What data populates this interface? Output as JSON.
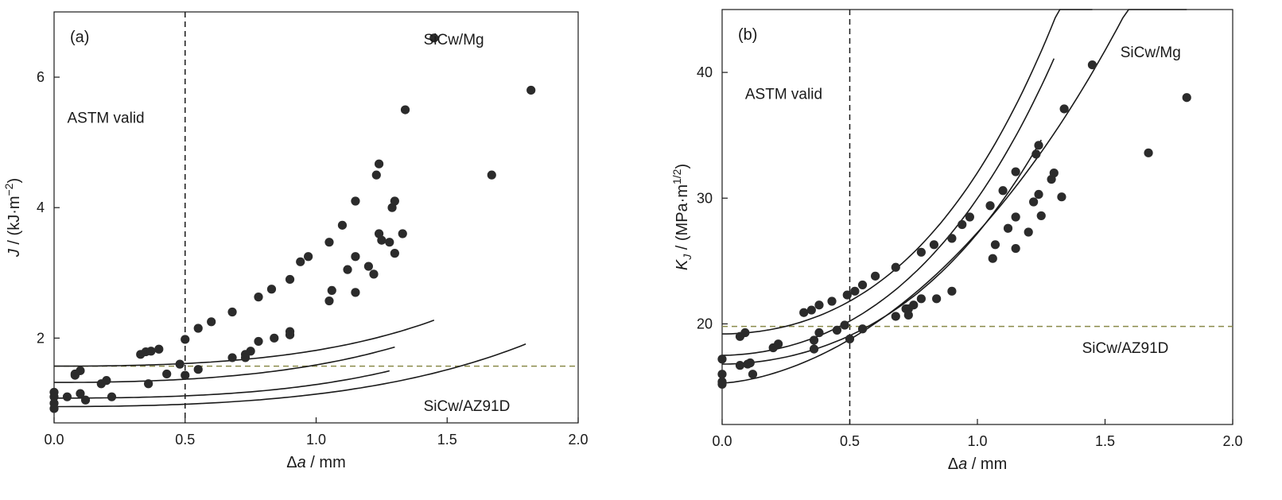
{
  "chart_data": [
    {
      "type": "scatter",
      "panel": "(a)",
      "xlabel": "Δa / mm",
      "xlabel_parts": [
        "Δ",
        "a",
        " / mm"
      ],
      "ylabel": "J / (kJ·m−2)",
      "ylabel_parts": [
        "J",
        " / (kJ·m",
        "−2",
        ")"
      ],
      "xlim": [
        0,
        2.0
      ],
      "ylim": [
        0.7,
        7.0
      ],
      "xticks": [
        0,
        0.5,
        1.0,
        1.5,
        2.0
      ],
      "xtick_labels": [
        "0.0",
        "0.5",
        "1.0",
        "1.5",
        "2.0"
      ],
      "yticks": [
        2,
        4,
        6
      ],
      "ytick_labels": [
        "2",
        "4",
        "6"
      ],
      "vline_x": 0.5,
      "hline_y": 1.57,
      "hline_color": "#8a8a4a",
      "marker_color": "#2b2b2b",
      "annotations": {
        "astm": {
          "text": "ASTM valid",
          "x": 0.05,
          "y": 5.3
        },
        "top": {
          "text": "SiCw/Mg",
          "x": 1.41,
          "y": 6.5
        },
        "bottom": {
          "text": "SiCw/AZ91D",
          "x": 1.41,
          "y": 0.88
        }
      },
      "series": [
        {
          "x": [
            0.0,
            0.08,
            0.1,
            0.35,
            0.4,
            0.5,
            0.55,
            0.6,
            0.68,
            0.78,
            0.83,
            0.9,
            0.94,
            0.97,
            1.05,
            1.1,
            1.15,
            1.23,
            1.24,
            1.34,
            1.45
          ],
          "y": [
            1.17,
            1.43,
            1.5,
            1.79,
            1.83,
            1.98,
            2.15,
            2.25,
            2.4,
            2.63,
            2.75,
            2.9,
            3.17,
            3.25,
            3.47,
            3.73,
            4.1,
            4.5,
            4.67,
            5.5,
            6.6
          ],
          "curve": {
            "y0": 1.57,
            "a": 0.14,
            "b": 2.2,
            "xmax": 1.45
          }
        },
        {
          "x": [
            0.0,
            0.08,
            0.12,
            0.22,
            0.36,
            0.43,
            0.55,
            0.68,
            0.73,
            0.75,
            0.78,
            0.84,
            0.9,
            1.06,
            1.12,
            1.15,
            1.2,
            1.25,
            1.29,
            1.3,
            1.33
          ],
          "y": [
            1.1,
            1.45,
            1.05,
            1.1,
            1.3,
            1.45,
            1.52,
            1.7,
            1.75,
            1.8,
            1.95,
            2.0,
            2.1,
            2.73,
            3.05,
            3.25,
            3.1,
            3.5,
            4.0,
            4.1,
            3.6
          ],
          "curve": {
            "y0": 1.32,
            "a": 0.155,
            "b": 2.05,
            "xmax": 1.3
          }
        },
        {
          "x": [
            0.0,
            0.05,
            0.1,
            0.18,
            0.2,
            0.33,
            0.37,
            0.48,
            0.5,
            0.73,
            0.9,
            1.05,
            1.15,
            1.22,
            1.24,
            1.28,
            1.3
          ],
          "y": [
            1.0,
            1.1,
            1.15,
            1.3,
            1.35,
            1.75,
            1.8,
            1.6,
            1.43,
            1.7,
            2.05,
            2.57,
            2.7,
            2.98,
            3.6,
            3.47,
            3.3
          ],
          "curve": {
            "y0": 1.08,
            "a": 0.12,
            "b": 2.2,
            "xmax": 1.28
          }
        },
        {
          "x": [
            0.0,
            1.67,
            1.82
          ],
          "y": [
            0.92,
            4.5,
            5.8
          ],
          "curve": {
            "y0": 0.95,
            "a": 0.11,
            "b": 2.0,
            "xmax": 1.8
          }
        }
      ]
    },
    {
      "type": "scatter",
      "panel": "(b)",
      "xlabel": "Δa / mm",
      "xlabel_parts": [
        "Δ",
        "a",
        " / mm"
      ],
      "ylabel": "KJ / (MPa·m1/2)",
      "ylabel_parts": [
        "K",
        "J",
        " / (MPa·m",
        "1/2",
        ")"
      ],
      "xlim": [
        0,
        2.0
      ],
      "ylim": [
        12,
        45
      ],
      "xticks": [
        0,
        0.5,
        1.0,
        1.5,
        2.0
      ],
      "xtick_labels": [
        "0.0",
        "0.5",
        "1.0",
        "1.5",
        "2.0"
      ],
      "yticks": [
        20,
        30,
        40
      ],
      "ytick_labels": [
        "20",
        "30",
        "40"
      ],
      "vline_x": 0.5,
      "hline_y": 19.8,
      "hline_color": "#8a8a4a",
      "marker_color": "#2b2b2b",
      "annotations": {
        "astm": {
          "text": "ASTM valid",
          "x": 0.09,
          "y": 37.9
        },
        "top": {
          "text": "SiCw/Mg",
          "x": 1.56,
          "y": 41.2
        },
        "bottom": {
          "text": "SiCw/AZ91D",
          "x": 1.41,
          "y": 17.7
        }
      },
      "series": [
        {
          "x": [
            0.0,
            0.07,
            0.09,
            0.32,
            0.35,
            0.38,
            0.43,
            0.49,
            0.52,
            0.55,
            0.6,
            0.68,
            0.78,
            0.83,
            0.9,
            0.94,
            0.97,
            1.05,
            1.1,
            1.15,
            1.23,
            1.24,
            1.34,
            1.45
          ],
          "y": [
            17.2,
            19.0,
            19.3,
            20.9,
            21.1,
            21.5,
            21.8,
            22.3,
            22.6,
            23.1,
            23.8,
            24.5,
            25.7,
            26.3,
            26.8,
            27.9,
            28.5,
            29.4,
            30.6,
            32.1,
            33.5,
            34.2,
            37.1,
            40.6
          ],
          "curve": {
            "y0": 19.2,
            "a": 7.4,
            "b": 1.9,
            "xmax": 1.45
          }
        },
        {
          "x": [
            0.0,
            0.07,
            0.11,
            0.2,
            0.22,
            0.36,
            0.38,
            0.45,
            0.48,
            0.55,
            0.68,
            0.73,
            0.75,
            0.78,
            0.84,
            0.9,
            1.06,
            1.12,
            1.15,
            1.2,
            1.22,
            1.24,
            1.25,
            1.29,
            1.3,
            1.33
          ],
          "y": [
            16.0,
            16.7,
            16.9,
            18.1,
            18.4,
            18.7,
            19.3,
            19.5,
            19.9,
            19.6,
            20.6,
            21.2,
            21.5,
            22.0,
            22.0,
            22.6,
            25.2,
            27.6,
            28.5,
            27.3,
            29.7,
            30.3,
            28.6,
            31.5,
            32.0,
            30.1
          ],
          "curve": {
            "y0": 17.5,
            "a": 7.2,
            "b": 1.8,
            "xmax": 1.3
          }
        },
        {
          "x": [
            0.0,
            0.1,
            0.12,
            0.36,
            0.5,
            0.72,
            0.73,
            1.07,
            1.15
          ],
          "y": [
            15.4,
            16.8,
            16.0,
            18.0,
            18.8,
            21.2,
            20.7,
            26.3,
            26.0
          ],
          "curve": {
            "y0": 16.8,
            "a": 6.0,
            "b": 1.8,
            "xmax": 1.25
          }
        },
        {
          "x": [
            0.0,
            1.67,
            1.82
          ],
          "y": [
            15.2,
            33.6,
            38.0
          ],
          "curve": {
            "y0": 15.3,
            "a": 8.6,
            "b": 1.55,
            "xmax": 1.82
          }
        }
      ]
    }
  ]
}
